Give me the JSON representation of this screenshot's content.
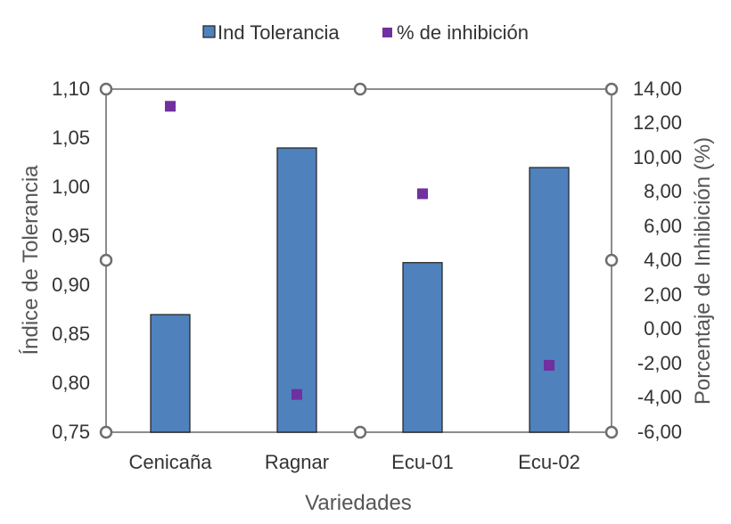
{
  "chart_data": {
    "type": "bar",
    "categories": [
      "Cenicaña",
      "Ragnar",
      "Ecu-01",
      "Ecu-02"
    ],
    "series": [
      {
        "name": "Ind Tolerancia",
        "type": "bar",
        "axis": "left",
        "color": "#4F81BD",
        "values": [
          0.87,
          1.04,
          0.923,
          1.02
        ]
      },
      {
        "name": "% de inhibición",
        "type": "scatter",
        "axis": "right",
        "color": "#7030A0",
        "values": [
          13.0,
          -3.8,
          7.9,
          -2.1
        ]
      }
    ],
    "xlabel": "Variedades",
    "ylabel": "Índice de Tolerancia",
    "y2label": "Porcentaje de Inhibición (%)",
    "ylim": [
      0.75,
      1.1
    ],
    "y2lim": [
      -6.0,
      14.0
    ],
    "yticks": [
      "0,75",
      "0,80",
      "0,85",
      "0,90",
      "0,95",
      "1,00",
      "1,05",
      "1,10"
    ],
    "y2ticks": [
      "-6,00",
      "-4,00",
      "-2,00",
      "0,00",
      "2,00",
      "4,00",
      "6,00",
      "8,00",
      "10,00",
      "12,00",
      "14,00"
    ],
    "legend_position": "top",
    "grid": false
  }
}
